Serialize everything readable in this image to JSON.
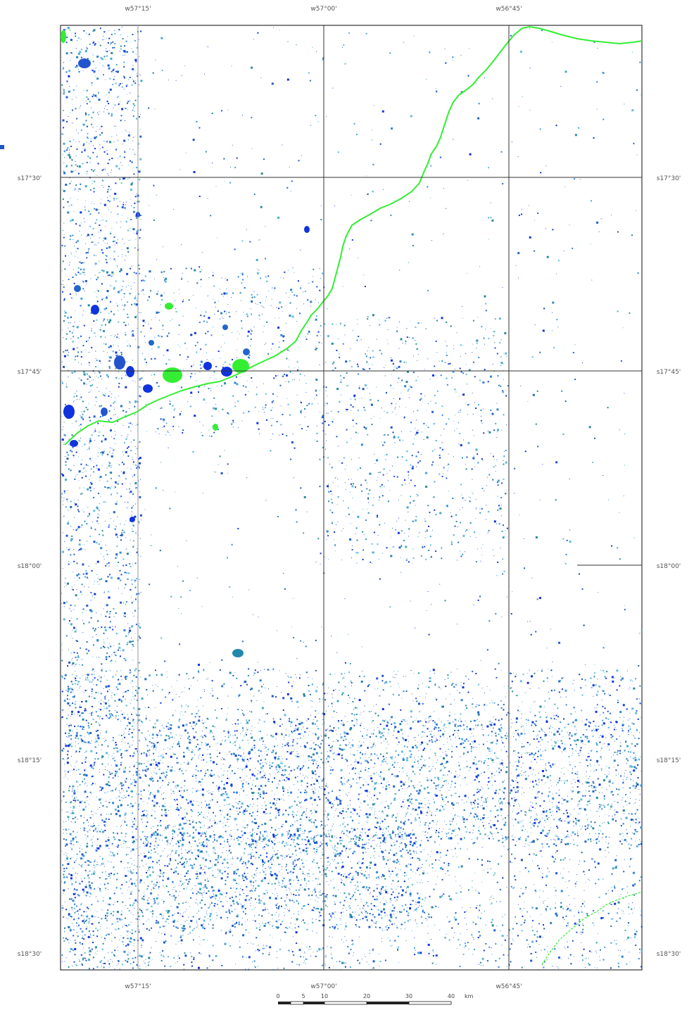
{
  "map": {
    "lon_labels_top": [
      "w57°15'",
      "w57°00'",
      "w56°45'"
    ],
    "lon_labels_bottom": [
      "w57°15'",
      "w57°00'",
      "w56°45'"
    ],
    "lat_labels_left": [
      "s17°30'",
      "s17°45'",
      "s18°00'",
      "s18°15'",
      "s18°30'"
    ],
    "lat_labels_right": [
      "s17°30'",
      "s17°45'",
      "s18°00'",
      "s18°15'",
      "s18°30'"
    ],
    "scale_bar": {
      "ticks": [
        "0",
        "5",
        "10",
        "20",
        "30",
        "40"
      ],
      "unit": "km"
    },
    "colors": {
      "river": "#33ee33",
      "water_dark": "#1133dd",
      "water_medium": "#2266cc",
      "water_light": "#44aacc",
      "grid": "#333333",
      "frame": "#333333"
    }
  }
}
